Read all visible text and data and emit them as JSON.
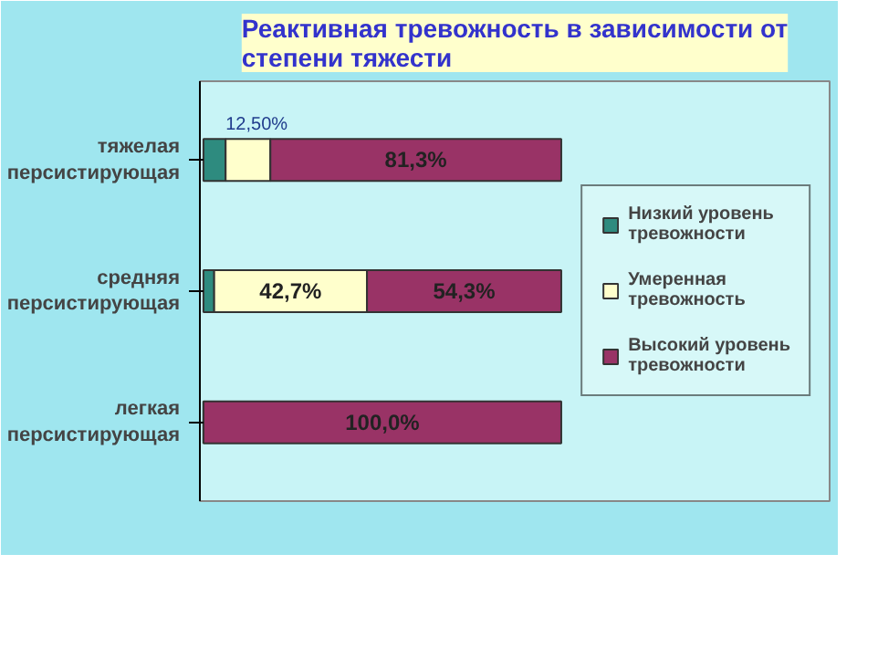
{
  "chart_data": {
    "type": "bar",
    "orientation": "horizontal",
    "stacked": true,
    "title": "Реактивная тревожность в зависимости от степени тяжести",
    "categories": [
      "тяжелая персистирующая",
      "средняя персистирующая",
      "легкая персистирующая"
    ],
    "series": [
      {
        "name": "Низкий уровень тревожности",
        "color": "#2e8b7f",
        "values": [
          6.2,
          3.0,
          0
        ],
        "value_labels": [
          null,
          null,
          null
        ]
      },
      {
        "name": "Умеренная тревожность",
        "color": "#ffffcc",
        "values": [
          12.5,
          42.7,
          0
        ],
        "value_labels": [
          "12,50%",
          "42,7%",
          null
        ]
      },
      {
        "name": "Высокий уровень тревожности",
        "color": "#993366",
        "values": [
          81.3,
          54.3,
          100.0
        ],
        "value_labels": [
          "81,3%",
          "54,3%",
          "100,0%"
        ]
      }
    ],
    "legend": "right",
    "grid": false
  }
}
